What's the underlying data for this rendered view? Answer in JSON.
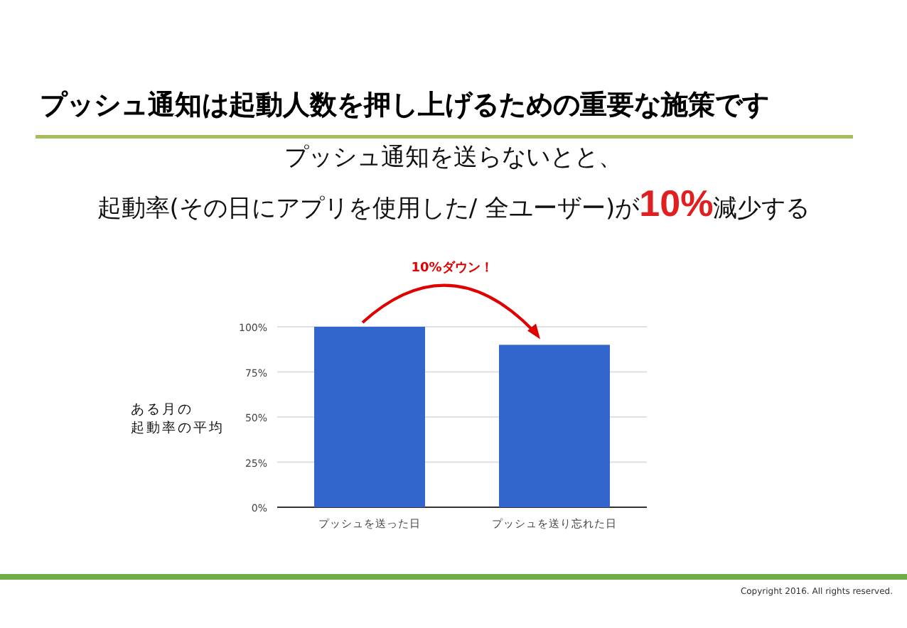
{
  "chart_data": {
    "type": "bar",
    "title": "プッシュ通知は起動人数を押し上げるための重要な施策です",
    "subtitle": "プッシュ通知を送らないとと、",
    "ylabel": "ある月の起動率の平均",
    "annotations": [
      "起動率(その日にアプリを使用した/ 全ユーザー)が**10%**減少する",
      "10%ダウン！",
      "Copyright 2016. All rights reserved."
    ],
    "categories": [
      "プッシュを送った日",
      "プッシュを送り忘れた日"
    ],
    "values": [
      100,
      90
    ],
    "color": "#3366cc",
    "ylim": [
      0,
      100
    ],
    "yticks": [
      {
        "value": 0,
        "label": "0%"
      },
      {
        "value": 25,
        "label": "25%"
      },
      {
        "value": 50,
        "label": "50%"
      },
      {
        "value": 75,
        "label": "75%"
      },
      {
        "value": 100,
        "label": "100%"
      }
    ],
    "grid": "y"
  }
}
